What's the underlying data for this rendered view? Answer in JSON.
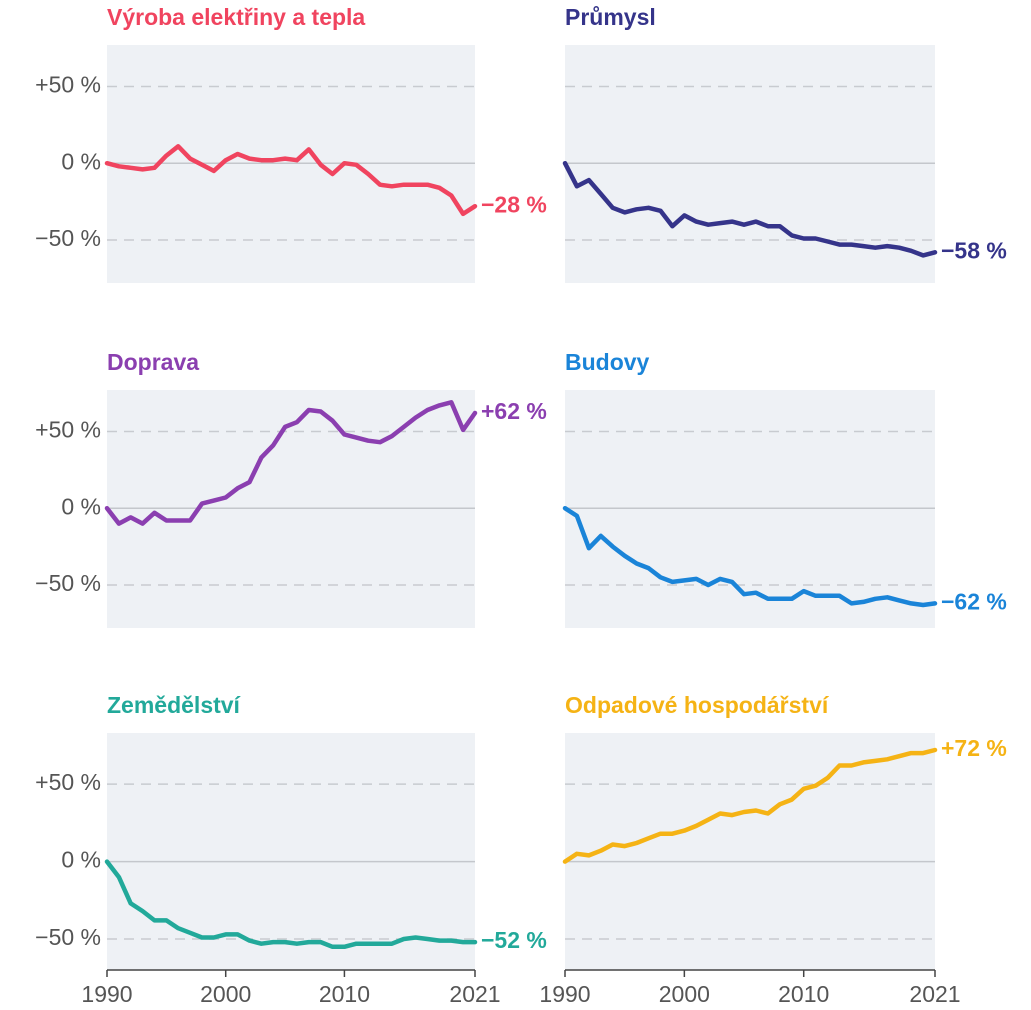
{
  "chart_data": [
    {
      "type": "line",
      "title": "Výroba elektřiny a tepla",
      "color": "#f0445f",
      "x": [
        1990,
        1991,
        1992,
        1993,
        1994,
        1995,
        1996,
        1997,
        1998,
        1999,
        2000,
        2001,
        2002,
        2003,
        2004,
        2005,
        2006,
        2007,
        2008,
        2009,
        2010,
        2011,
        2012,
        2013,
        2014,
        2015,
        2016,
        2017,
        2018,
        2019,
        2020,
        2021
      ],
      "values": [
        0,
        -2,
        -3,
        -4,
        -3,
        5,
        11,
        3,
        -1,
        -5,
        2,
        6,
        3,
        2,
        2,
        3,
        2,
        9,
        -1,
        -7,
        0,
        -1,
        -7,
        -14,
        -15,
        -14,
        -14,
        -14,
        -16,
        -21,
        -33,
        -28
      ],
      "end_label": "−28 %",
      "xlim": [
        1990,
        2021
      ],
      "ylim": [
        -78,
        77
      ],
      "yticks": [
        {
          "value": 50,
          "label": "+50 %"
        },
        {
          "value": 0,
          "label": "0 %"
        },
        {
          "value": -50,
          "label": "−50 %"
        }
      ],
      "show_ytick_labels": true,
      "grid": true
    },
    {
      "type": "line",
      "title": "Průmysl",
      "color": "#35348a",
      "x": [
        1990,
        1991,
        1992,
        1993,
        1994,
        1995,
        1996,
        1997,
        1998,
        1999,
        2000,
        2001,
        2002,
        2003,
        2004,
        2005,
        2006,
        2007,
        2008,
        2009,
        2010,
        2011,
        2012,
        2013,
        2014,
        2015,
        2016,
        2017,
        2018,
        2019,
        2020,
        2021
      ],
      "values": [
        0,
        -15,
        -11,
        -20,
        -29,
        -32,
        -30,
        -29,
        -31,
        -41,
        -34,
        -38,
        -40,
        -39,
        -38,
        -40,
        -38,
        -41,
        -41,
        -47,
        -49,
        -49,
        -51,
        -53,
        -53,
        -54,
        -55,
        -54,
        -55,
        -57,
        -60,
        -58
      ],
      "end_label": "−58 %",
      "xlim": [
        1990,
        2021
      ],
      "ylim": [
        -78,
        77
      ],
      "yticks": [
        50,
        0,
        -50
      ],
      "show_ytick_labels": false,
      "grid": true
    },
    {
      "type": "line",
      "title": "Doprava",
      "color": "#8b3fb0",
      "x": [
        1990,
        1991,
        1992,
        1993,
        1994,
        1995,
        1996,
        1997,
        1998,
        1999,
        2000,
        2001,
        2002,
        2003,
        2004,
        2005,
        2006,
        2007,
        2008,
        2009,
        2010,
        2011,
        2012,
        2013,
        2014,
        2015,
        2016,
        2017,
        2018,
        2019,
        2020,
        2021
      ],
      "values": [
        0,
        -10,
        -6,
        -10,
        -3,
        -8,
        -8,
        -8,
        3,
        5,
        7,
        13,
        17,
        33,
        41,
        53,
        56,
        64,
        63,
        57,
        48,
        46,
        44,
        43,
        47,
        53,
        59,
        64,
        67,
        69,
        51,
        62
      ],
      "end_label": "+62 %",
      "xlim": [
        1990,
        2021
      ],
      "ylim": [
        -78,
        77
      ],
      "yticks": [
        {
          "value": 50,
          "label": "+50 %"
        },
        {
          "value": 0,
          "label": "0 %"
        },
        {
          "value": -50,
          "label": "−50 %"
        }
      ],
      "show_ytick_labels": true,
      "grid": true
    },
    {
      "type": "line",
      "title": "Budovy",
      "color": "#1a84d8",
      "x": [
        1990,
        1991,
        1992,
        1993,
        1994,
        1995,
        1996,
        1997,
        1998,
        1999,
        2000,
        2001,
        2002,
        2003,
        2004,
        2005,
        2006,
        2007,
        2008,
        2009,
        2010,
        2011,
        2012,
        2013,
        2014,
        2015,
        2016,
        2017,
        2018,
        2019,
        2020,
        2021
      ],
      "values": [
        0,
        -5,
        -26,
        -18,
        -25,
        -31,
        -36,
        -39,
        -45,
        -48,
        -47,
        -46,
        -50,
        -46,
        -48,
        -56,
        -55,
        -59,
        -59,
        -59,
        -54,
        -57,
        -57,
        -57,
        -62,
        -61,
        -59,
        -58,
        -60,
        -62,
        -63,
        -62
      ],
      "end_label": "−62 %",
      "xlim": [
        1990,
        2021
      ],
      "ylim": [
        -78,
        77
      ],
      "yticks": [
        50,
        0,
        -50
      ],
      "show_ytick_labels": false,
      "grid": true
    },
    {
      "type": "line",
      "title": "Zemědělství",
      "color": "#22a99a",
      "x": [
        1990,
        1991,
        1992,
        1993,
        1994,
        1995,
        1996,
        1997,
        1998,
        1999,
        2000,
        2001,
        2002,
        2003,
        2004,
        2005,
        2006,
        2007,
        2008,
        2009,
        2010,
        2011,
        2012,
        2013,
        2014,
        2015,
        2016,
        2017,
        2018,
        2019,
        2020,
        2021
      ],
      "values": [
        0,
        -10,
        -27,
        -32,
        -38,
        -38,
        -43,
        -46,
        -49,
        -49,
        -47,
        -47,
        -51,
        -53,
        -52,
        -52,
        -53,
        -52,
        -52,
        -55,
        -55,
        -53,
        -53,
        -53,
        -53,
        -50,
        -49,
        -50,
        -51,
        -51,
        -52,
        -52
      ],
      "end_label": "−52 %",
      "xlim": [
        1990,
        2021
      ],
      "ylim": [
        -70,
        83
      ],
      "yticks": [
        {
          "value": 50,
          "label": "+50 %"
        },
        {
          "value": 0,
          "label": "0 %"
        },
        {
          "value": -50,
          "label": "−50 %"
        }
      ],
      "show_ytick_labels": true,
      "xticks": [
        1990,
        2000,
        2010,
        2021
      ],
      "grid": true
    },
    {
      "type": "line",
      "title": "Odpadové hospodářství",
      "color": "#f5b315",
      "x": [
        1990,
        1991,
        1992,
        1993,
        1994,
        1995,
        1996,
        1997,
        1998,
        1999,
        2000,
        2001,
        2002,
        2003,
        2004,
        2005,
        2006,
        2007,
        2008,
        2009,
        2010,
        2011,
        2012,
        2013,
        2014,
        2015,
        2016,
        2017,
        2018,
        2019,
        2020,
        2021
      ],
      "values": [
        0,
        5,
        4,
        7,
        11,
        10,
        12,
        15,
        18,
        18,
        20,
        23,
        27,
        31,
        30,
        32,
        33,
        31,
        37,
        40,
        47,
        49,
        54,
        62,
        62,
        64,
        65,
        66,
        68,
        70,
        70,
        72
      ],
      "end_label": "+72 %",
      "xlim": [
        1990,
        2021
      ],
      "ylim": [
        -70,
        83
      ],
      "yticks": [
        50,
        0,
        -50
      ],
      "show_ytick_labels": false,
      "xticks": [
        1990,
        2000,
        2010,
        2021
      ],
      "grid": true
    }
  ]
}
